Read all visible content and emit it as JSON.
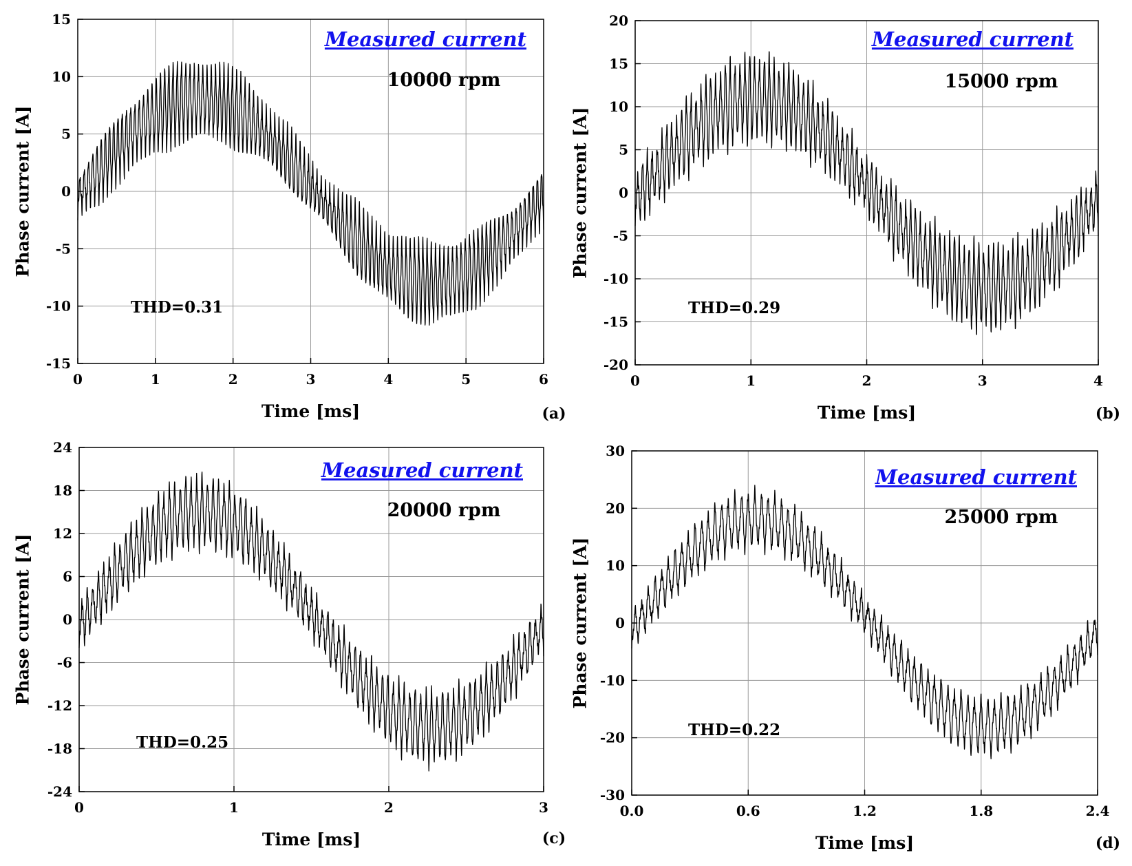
{
  "chart_data": [
    {
      "type": "line",
      "panel": "(a)",
      "title": "Measured current",
      "speed": "10000 rpm",
      "thd": "THD=0.31",
      "xlabel": "Time [ms]",
      "ylabel": "Phase current [A]",
      "xlim": [
        0,
        6
      ],
      "ylim": [
        -15,
        15
      ],
      "xticks": [
        "0",
        "1",
        "2",
        "3",
        "4",
        "5",
        "6"
      ],
      "yticks": [
        "15",
        "10",
        "5",
        "0",
        "-5",
        "-10",
        "-15"
      ],
      "grid": true,
      "series": [
        {
          "name": "Measured current",
          "amplitude": 8,
          "period_ms": 6,
          "ripple_pp": 7,
          "ripple_cycles": 110,
          "phase_offset_ms": 0.05
        }
      ]
    },
    {
      "type": "line",
      "panel": "(b)",
      "title": "Measured current",
      "speed": "15000 rpm",
      "thd": "THD=0.29",
      "xlabel": "Time [ms]",
      "ylabel": "Phase current [A]",
      "xlim": [
        0,
        4
      ],
      "ylim": [
        -20,
        20
      ],
      "xticks": [
        "0",
        "1",
        "2",
        "3",
        "4"
      ],
      "yticks": [
        "20",
        "15",
        "10",
        "5",
        "0",
        "-5",
        "-10",
        "-15",
        "-20"
      ],
      "grid": true,
      "series": [
        {
          "name": "Measured current",
          "amplitude": 11,
          "period_ms": 4,
          "ripple_pp": 10,
          "ripple_cycles": 95,
          "phase_offset_ms": 0.05
        }
      ]
    },
    {
      "type": "line",
      "panel": "(c)",
      "title": "Measured current",
      "speed": "20000 rpm",
      "thd": "THD=0.25",
      "xlabel": "Time [ms]",
      "ylabel": "Phase current [A]",
      "xlim": [
        0,
        3
      ],
      "ylim": [
        -24,
        24
      ],
      "xticks": [
        "0",
        "1",
        "2",
        "3"
      ],
      "yticks": [
        "24",
        "18",
        "12",
        "6",
        "0",
        "-6",
        "-12",
        "-18",
        "-24"
      ],
      "grid": true,
      "series": [
        {
          "name": "Measured current",
          "amplitude": 15,
          "period_ms": 3,
          "ripple_pp": 10,
          "ripple_cycles": 85,
          "phase_offset_ms": 0.03
        }
      ]
    },
    {
      "type": "line",
      "panel": "(d)",
      "title": "Measured current",
      "speed": "25000 rpm",
      "thd": "THD=0.22",
      "xlabel": "Time [ms]",
      "ylabel": "Phase current [A]",
      "xlim": [
        0,
        2.4
      ],
      "ylim": [
        -30,
        30
      ],
      "xticks": [
        "0.0",
        "0.6",
        "1.2",
        "1.8",
        "2.4"
      ],
      "yticks": [
        "30",
        "20",
        "10",
        "0",
        "-10",
        "-20",
        "-30"
      ],
      "grid": true,
      "series": [
        {
          "name": "Measured current",
          "amplitude": 18,
          "period_ms": 2.4,
          "ripple_pp": 10,
          "ripple_cycles": 70,
          "phase_offset_ms": 0.03
        }
      ]
    }
  ]
}
